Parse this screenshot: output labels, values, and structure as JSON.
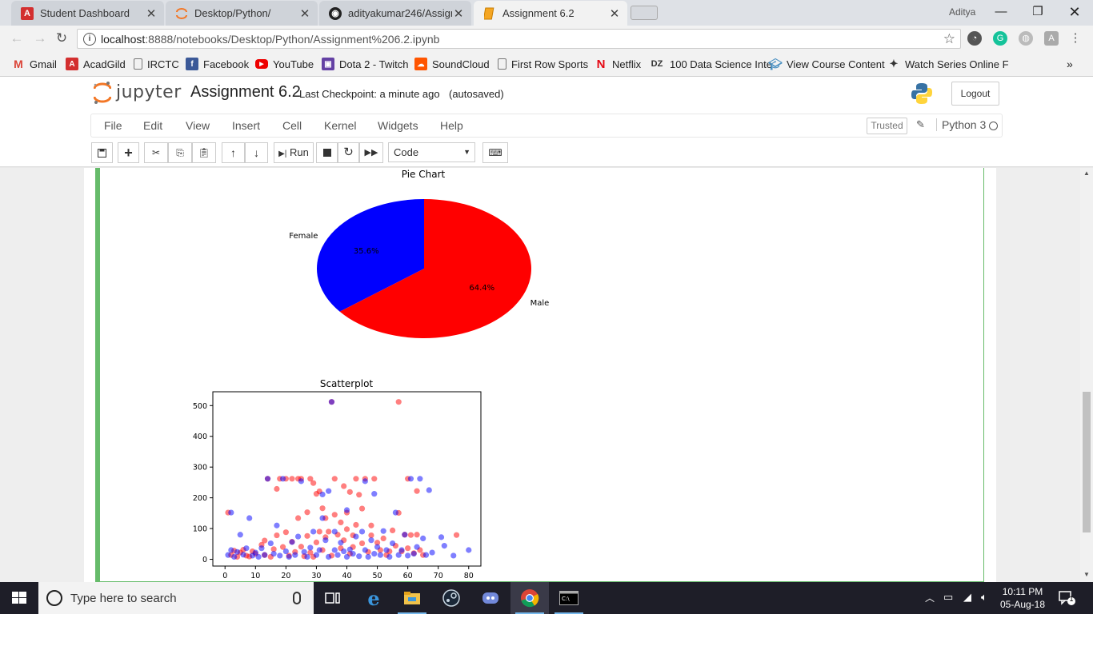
{
  "browser": {
    "tabs": [
      {
        "title": "Student Dashboard",
        "icon": "acadgild-icon",
        "active": false
      },
      {
        "title": "Desktop/Python/",
        "icon": "jupyter-icon",
        "active": false
      },
      {
        "title": "adityakumar246/Assignm",
        "icon": "github-icon",
        "active": false
      },
      {
        "title": "Assignment 6.2",
        "icon": "notebook-icon",
        "active": true
      }
    ],
    "user": "Aditya",
    "address": {
      "host": "localhost",
      "rest": ":8888/notebooks/Desktop/Python/Assignment%206.2.ipynb"
    },
    "bookmarks": [
      {
        "label": "Gmail",
        "icon": "gmail-icon",
        "color": "#db4437"
      },
      {
        "label": "AcadGild",
        "icon": "acadgild-icon",
        "color": "#d32f2f"
      },
      {
        "label": "IRCTC",
        "icon": "page-icon",
        "color": ""
      },
      {
        "label": "Facebook",
        "icon": "facebook-icon",
        "color": "#3b5998"
      },
      {
        "label": "YouTube",
        "icon": "youtube-icon",
        "color": "#e00"
      },
      {
        "label": "Dota 2 - Twitch",
        "icon": "twitch-icon",
        "color": "#6441a4"
      },
      {
        "label": "SoundCloud",
        "icon": "soundcloud-icon",
        "color": "#ff5500"
      },
      {
        "label": "First Row Sports",
        "icon": "page-icon",
        "color": ""
      },
      {
        "label": "Netflix",
        "icon": "netflix-icon",
        "color": "#e50914"
      },
      {
        "label": "100 Data Science Inte",
        "icon": "dzone-icon",
        "color": ""
      },
      {
        "label": "View Course Content",
        "icon": "course-icon",
        "color": "#4a90c2"
      },
      {
        "label": "Watch Series Online F",
        "icon": "series-icon",
        "color": ""
      }
    ]
  },
  "jupyter": {
    "logo_text": "jupyter",
    "notebook_name": "Assignment 6.2",
    "checkpoint": "Last Checkpoint: a minute ago",
    "autosave": "(autosaved)",
    "logout": "Logout",
    "menus": [
      "File",
      "Edit",
      "View",
      "Insert",
      "Cell",
      "Kernel",
      "Widgets",
      "Help"
    ],
    "trusted": "Trusted",
    "kernel": "Python 3",
    "run_label": "Run",
    "cell_type": "Code"
  },
  "chart_data": [
    {
      "type": "pie",
      "title": "Pie Chart",
      "labels": [
        "Female",
        "Male"
      ],
      "values": [
        35.6,
        64.4
      ],
      "autopct": [
        "35.6%",
        "64.4%"
      ],
      "colors": [
        "#0000ff",
        "#ff0000"
      ],
      "startangle": 90
    },
    {
      "type": "scatter",
      "title": "Scatterplot",
      "xlim": [
        -4,
        84
      ],
      "ylim": [
        -22,
        545
      ],
      "xticks": [
        0,
        10,
        20,
        30,
        40,
        50,
        60,
        70,
        80
      ],
      "yticks": [
        0,
        100,
        200,
        300,
        400,
        500
      ],
      "series": [
        {
          "color": "#ff0000",
          "points": [
            [
              1,
              152
            ],
            [
              2,
              14
            ],
            [
              3,
              28
            ],
            [
              4,
              8
            ],
            [
              5,
              22
            ],
            [
              6,
              31
            ],
            [
              7,
              12
            ],
            [
              8,
              9
            ],
            [
              9,
              26
            ],
            [
              10,
              18
            ],
            [
              12,
              47
            ],
            [
              13,
              14
            ],
            [
              13,
              61
            ],
            [
              14,
              262
            ],
            [
              15,
              8
            ],
            [
              16,
              33
            ],
            [
              17,
              78
            ],
            [
              17,
              229
            ],
            [
              18,
              262
            ],
            [
              19,
              40
            ],
            [
              20,
              262
            ],
            [
              20,
              88
            ],
            [
              21,
              12
            ],
            [
              22,
              262
            ],
            [
              22,
              57
            ],
            [
              23,
              24
            ],
            [
              24,
              262
            ],
            [
              24,
              134
            ],
            [
              25,
              262
            ],
            [
              25,
              41
            ],
            [
              26,
              10
            ],
            [
              27,
              153
            ],
            [
              27,
              76
            ],
            [
              28,
              262
            ],
            [
              28,
              22
            ],
            [
              29,
              248
            ],
            [
              29,
              8
            ],
            [
              30,
              213
            ],
            [
              30,
              55
            ],
            [
              31,
              221
            ],
            [
              31,
              90
            ],
            [
              32,
              166
            ],
            [
              32,
              30
            ],
            [
              33,
              134
            ],
            [
              33,
              72
            ],
            [
              34,
              90
            ],
            [
              35,
              12
            ],
            [
              35,
              512
            ],
            [
              36,
              145
            ],
            [
              36,
              262
            ],
            [
              37,
              80
            ],
            [
              38,
              120
            ],
            [
              38,
              36
            ],
            [
              39,
              238
            ],
            [
              39,
              62
            ],
            [
              40,
              152
            ],
            [
              40,
              98
            ],
            [
              41,
              219
            ],
            [
              41,
              18
            ],
            [
              42,
              78
            ],
            [
              42,
              40
            ],
            [
              43,
              262
            ],
            [
              43,
              112
            ],
            [
              44,
              210
            ],
            [
              45,
              165
            ],
            [
              45,
              52
            ],
            [
              46,
              262
            ],
            [
              47,
              24
            ],
            [
              48,
              110
            ],
            [
              48,
              78
            ],
            [
              49,
              262
            ],
            [
              50,
              54
            ],
            [
              51,
              30
            ],
            [
              52,
              68
            ],
            [
              53,
              14
            ],
            [
              54,
              26
            ],
            [
              55,
              94
            ],
            [
              56,
              44
            ],
            [
              57,
              151
            ],
            [
              57,
              512
            ],
            [
              58,
              26
            ],
            [
              59,
              80
            ],
            [
              60,
              262
            ],
            [
              60,
              36
            ],
            [
              61,
              79
            ],
            [
              62,
              20
            ],
            [
              63,
              222
            ],
            [
              63,
              80
            ],
            [
              64,
              30
            ],
            [
              65,
              14
            ],
            [
              76,
              79
            ]
          ]
        },
        {
          "color": "#0000ff",
          "points": [
            [
              1,
              14
            ],
            [
              2,
              152
            ],
            [
              2,
              30
            ],
            [
              3,
              8
            ],
            [
              4,
              24
            ],
            [
              5,
              80
            ],
            [
              6,
              15
            ],
            [
              7,
              36
            ],
            [
              8,
              134
            ],
            [
              9,
              12
            ],
            [
              10,
              22
            ],
            [
              11,
              8
            ],
            [
              12,
              36
            ],
            [
              13,
              14
            ],
            [
              14,
              262
            ],
            [
              15,
              52
            ],
            [
              16,
              18
            ],
            [
              17,
              110
            ],
            [
              18,
              12
            ],
            [
              19,
              262
            ],
            [
              20,
              26
            ],
            [
              21,
              8
            ],
            [
              22,
              56
            ],
            [
              23,
              14
            ],
            [
              24,
              74
            ],
            [
              25,
              254
            ],
            [
              26,
              24
            ],
            [
              27,
              8
            ],
            [
              28,
              38
            ],
            [
              29,
              90
            ],
            [
              30,
              14
            ],
            [
              31,
              30
            ],
            [
              32,
              211
            ],
            [
              32,
              134
            ],
            [
              33,
              62
            ],
            [
              34,
              8
            ],
            [
              34,
              222
            ],
            [
              35,
              512
            ],
            [
              36,
              30
            ],
            [
              36,
              90
            ],
            [
              37,
              14
            ],
            [
              38,
              54
            ],
            [
              39,
              26
            ],
            [
              40,
              8
            ],
            [
              40,
              160
            ],
            [
              41,
              32
            ],
            [
              42,
              18
            ],
            [
              43,
              74
            ],
            [
              44,
              10
            ],
            [
              45,
              90
            ],
            [
              46,
              254
            ],
            [
              46,
              30
            ],
            [
              47,
              8
            ],
            [
              48,
              62
            ],
            [
              49,
              213
            ],
            [
              49,
              18
            ],
            [
              50,
              40
            ],
            [
              51,
              14
            ],
            [
              52,
              92
            ],
            [
              53,
              30
            ],
            [
              54,
              8
            ],
            [
              55,
              52
            ],
            [
              56,
              152
            ],
            [
              57,
              14
            ],
            [
              58,
              30
            ],
            [
              59,
              80
            ],
            [
              60,
              12
            ],
            [
              61,
              262
            ],
            [
              62,
              18
            ],
            [
              63,
              40
            ],
            [
              64,
              262
            ],
            [
              65,
              68
            ],
            [
              66,
              14
            ],
            [
              67,
              225
            ],
            [
              68,
              22
            ],
            [
              71,
              72
            ],
            [
              72,
              44
            ],
            [
              75,
              12
            ],
            [
              80,
              30
            ]
          ]
        }
      ]
    }
  ],
  "taskbar": {
    "search_placeholder": "Type here to search",
    "time": "10:11 PM",
    "date": "05-Aug-18",
    "notif_count": "1"
  }
}
